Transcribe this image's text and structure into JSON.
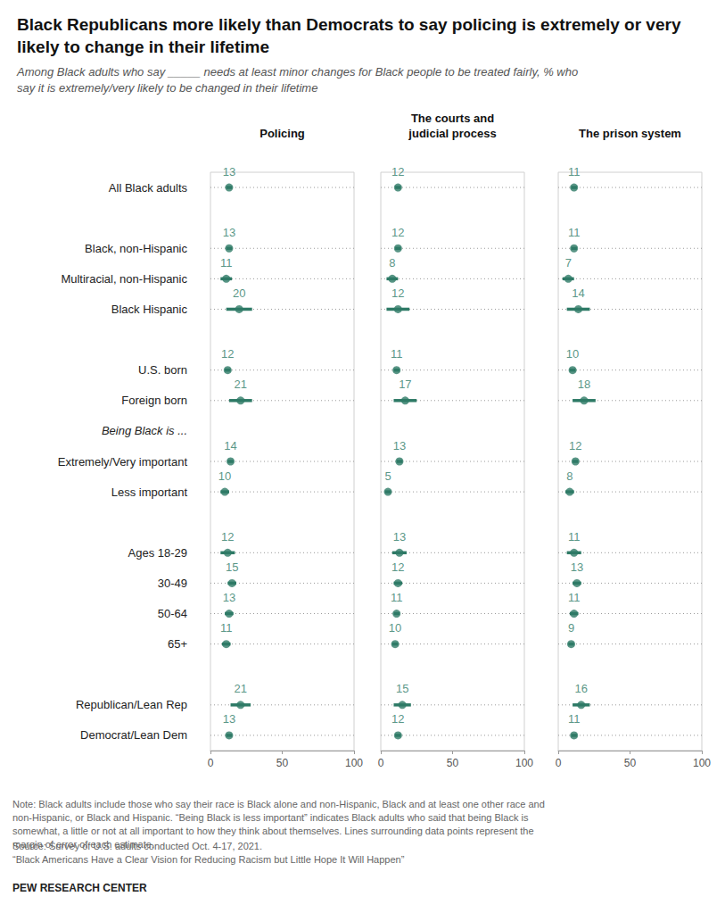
{
  "chart_data": {
    "type": "dot",
    "orientation": "horizontal",
    "title": "Black Republicans more likely than Democrats to say policing is extremely or very likely to change in their lifetime",
    "subtitle": "Among Black adults who say _____ needs at least minor changes for Black people to be treated fairly, % who say it is extremely/very likely to be changed in their lifetime",
    "categories": [
      "All Black adults",
      null,
      "Black, non-Hispanic",
      "Multiracial, non-Hispanic",
      "Black Hispanic",
      null,
      "U.S. born",
      "Foreign born",
      "Being Black is ...",
      "Extremely/Very important",
      "Less important",
      null,
      "Ages 18-29",
      "30-49",
      "50-64",
      "65+",
      null,
      "Republican/Lean Rep",
      "Democrat/Lean Dem"
    ],
    "xlim": [
      0,
      100
    ],
    "xticks": [
      0,
      50,
      100
    ],
    "grid": false,
    "data_labels": true,
    "series": [
      {
        "name": "Policing",
        "color": "#2e7a66",
        "values": [
          13,
          null,
          13,
          11,
          20,
          null,
          12,
          21,
          null,
          14,
          10,
          null,
          12,
          15,
          13,
          11,
          null,
          21,
          13
        ],
        "moe": [
          2,
          null,
          2,
          4,
          9,
          null,
          2,
          8,
          null,
          2,
          3,
          null,
          5,
          3,
          3,
          3,
          null,
          7,
          2
        ]
      },
      {
        "name": "The courts and\njudicial process",
        "color": "#2e7a66",
        "values": [
          12,
          null,
          12,
          8,
          12,
          null,
          11,
          17,
          null,
          13,
          5,
          null,
          13,
          12,
          11,
          10,
          null,
          15,
          12
        ],
        "moe": [
          2,
          null,
          2,
          4,
          8,
          null,
          2,
          8,
          null,
          2,
          2,
          null,
          5,
          3,
          2,
          2,
          null,
          6,
          2
        ]
      },
      {
        "name": "The prison system",
        "color": "#2e7a66",
        "values": [
          11,
          null,
          11,
          7,
          14,
          null,
          10,
          18,
          null,
          12,
          8,
          null,
          11,
          13,
          11,
          9,
          null,
          16,
          11
        ],
        "moe": [
          2,
          null,
          2,
          4,
          8,
          null,
          2,
          8,
          null,
          2,
          3,
          null,
          5,
          3,
          3,
          2,
          null,
          6,
          2
        ]
      }
    ],
    "note": "Note: Black adults include those who say their race is Black alone and non-Hispanic, Black and at least one other race and non-Hispanic, or Black and Hispanic. “Being Black is less important” indicates Black adults who said that being Black is somewhat, a little or not at all important to how they think about themselves. Lines surrounding data points represent the margin of error of each estimate.",
    "source": "Source: Survey of U.S. adults conducted Oct. 4-17, 2021.",
    "report": "“Black Americans Have a Clear Vision for Reducing Racism but Little Hope It Will Happen”",
    "credit": "PEW RESEARCH CENTER"
  }
}
